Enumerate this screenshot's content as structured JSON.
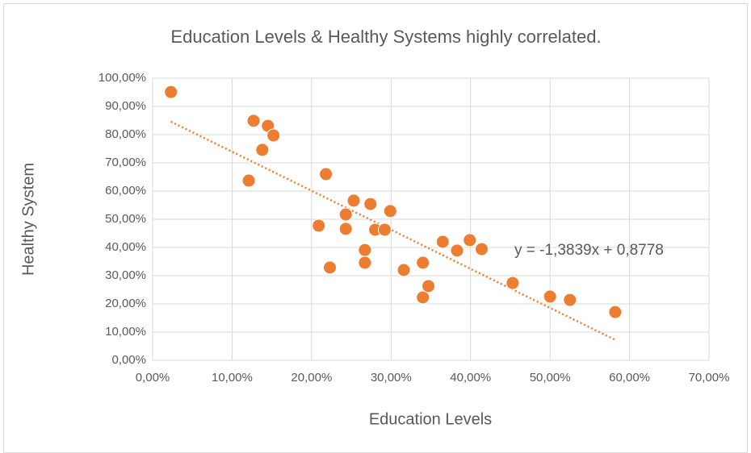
{
  "chart_data": {
    "type": "scatter",
    "title": "Education Levels & Healthy Systems highly correlated.",
    "x_label": "Education Levels",
    "y_label": "Healthy System",
    "color": "#ED7D31",
    "grid": true,
    "x": [
      0.023,
      0.127,
      0.145,
      0.152,
      0.138,
      0.121,
      0.218,
      0.209,
      0.243,
      0.243,
      0.223,
      0.253,
      0.274,
      0.28,
      0.292,
      0.299,
      0.267,
      0.267,
      0.316,
      0.34,
      0.34,
      0.347,
      0.365,
      0.383,
      0.399,
      0.414,
      0.453,
      0.5,
      0.525,
      0.582
    ],
    "values": [
      0.951,
      0.849,
      0.831,
      0.797,
      0.746,
      0.637,
      0.66,
      0.477,
      0.517,
      0.466,
      0.329,
      0.566,
      0.554,
      0.463,
      0.463,
      0.529,
      0.391,
      0.346,
      0.32,
      0.346,
      0.223,
      0.263,
      0.42,
      0.389,
      0.426,
      0.394,
      0.274,
      0.226,
      0.214,
      0.171
    ],
    "trendline": {
      "slope": -1.3839,
      "intercept": 0.8778,
      "label": "y = -1,3839x + 0,8778"
    },
    "xlim": [
      0,
      0.7
    ],
    "xticks": [
      {
        "value": 0,
        "label": "0,00%"
      },
      {
        "value": 0.1,
        "label": "10,00%"
      },
      {
        "value": 0.2,
        "label": "20,00%"
      },
      {
        "value": 0.3,
        "label": "30,00%"
      },
      {
        "value": 0.4,
        "label": "40,00%"
      },
      {
        "value": 0.5,
        "label": "50,00%"
      },
      {
        "value": 0.6,
        "label": "60,00%"
      },
      {
        "value": 0.7,
        "label": "70,00%"
      }
    ],
    "ylim": [
      0,
      1
    ],
    "yticks": [
      {
        "value": 0,
        "label": "0,00%"
      },
      {
        "value": 0.1,
        "label": "10,00%"
      },
      {
        "value": 0.2,
        "label": "20,00%"
      },
      {
        "value": 0.3,
        "label": "30,00%"
      },
      {
        "value": 0.4,
        "label": "40,00%"
      },
      {
        "value": 0.5,
        "label": "50,00%"
      },
      {
        "value": 0.6,
        "label": "60,00%"
      },
      {
        "value": 0.7,
        "label": "70,00%"
      },
      {
        "value": 0.8,
        "label": "80,00%"
      },
      {
        "value": 0.9,
        "label": "90,00%"
      },
      {
        "value": 1,
        "label": "100,00%"
      }
    ]
  }
}
